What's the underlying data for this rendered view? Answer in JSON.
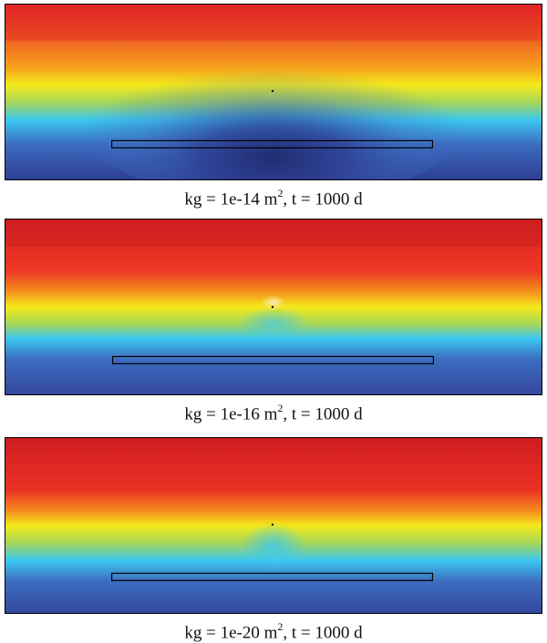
{
  "panels": [
    {
      "caption_prefix": "kg = 1e-14 m",
      "caption_exp": "2",
      "caption_suffix": ", t = 1000 d"
    },
    {
      "caption_prefix": "kg = 1e-16 m",
      "caption_exp": "2",
      "caption_suffix": ", t = 1000 d"
    },
    {
      "caption_prefix": "kg = 1e-20 m",
      "caption_exp": "2",
      "caption_suffix": ", t = 1000 d"
    }
  ],
  "colors": {
    "dark_red": "#a01818",
    "red": "#e8262a",
    "orange": "#f5821f",
    "yellow": "#f4ea1a",
    "cyan": "#3cc8f0",
    "blue": "#3c6cc0",
    "dark_blue": "#28357a"
  }
}
